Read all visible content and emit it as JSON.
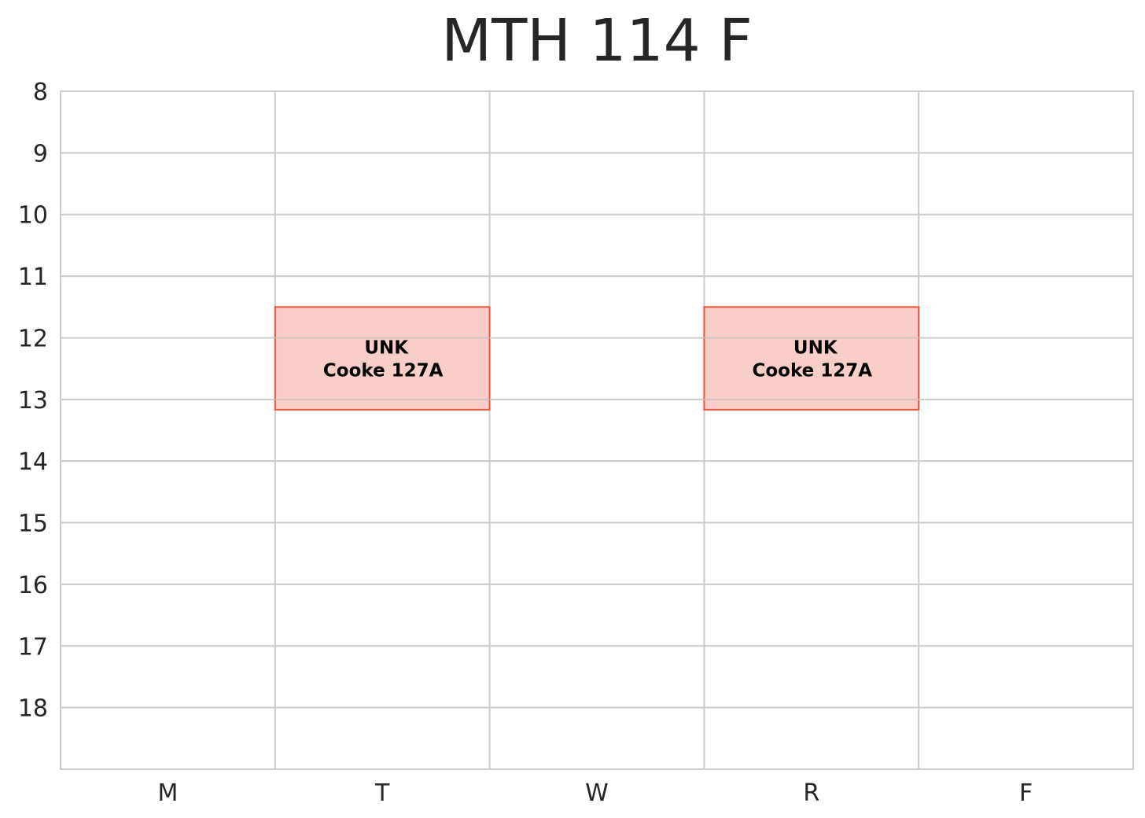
{
  "chart_data": {
    "type": "schedule",
    "title": "MTH 114 F",
    "categories": [
      "M",
      "T",
      "W",
      "R",
      "F"
    ],
    "y_ticks": [
      8,
      9,
      10,
      11,
      12,
      13,
      14,
      15,
      16,
      17,
      18
    ],
    "ylim": [
      8,
      19
    ],
    "y_inverted": true,
    "grid": true,
    "colors": {
      "fill": "#f4a49a",
      "edge": "#f0553a",
      "grid": "#cccccc",
      "text": "#262626"
    },
    "events": [
      {
        "day": "T",
        "start": 11.5,
        "end": 13.1667,
        "line1": "UNK",
        "line2": "Cooke 127A"
      },
      {
        "day": "R",
        "start": 11.5,
        "end": 13.1667,
        "line1": "UNK",
        "line2": "Cooke 127A"
      }
    ]
  }
}
